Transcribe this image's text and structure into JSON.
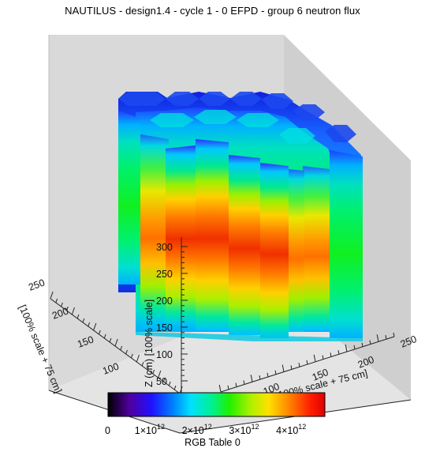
{
  "chart_data": {
    "type": "3d-volume",
    "title": "NAUTILUS - design1.4 - cycle 1 - 0 EFPD - group 6 neutron flux",
    "axes": {
      "x": {
        "label": "100% scale + 75 cm]",
        "ticks": [
          "100",
          "150",
          "200",
          "250"
        ]
      },
      "y": {
        "label": "[100% scale + 75 cm]",
        "ticks": [
          "250",
          "200",
          "150",
          "100"
        ]
      },
      "z": {
        "label": "Z (cm) [100% scale]",
        "ticks": [
          "300",
          "250",
          "200",
          "150",
          "100",
          "50"
        ]
      }
    },
    "colorbar": {
      "title": "RGB Table 0",
      "range": [
        0,
        4600000000000.0
      ],
      "ticks": [
        {
          "value": 0,
          "label": "0",
          "html": "0"
        },
        {
          "value": 1000000000000.0,
          "label": "1×10^12",
          "html": "1×10<sup>12</sup>"
        },
        {
          "value": 2000000000000.0,
          "label": "2×10^12",
          "html": "2×10<sup>12</sup>"
        },
        {
          "value": 3000000000000.0,
          "label": "3×10^12",
          "html": "3×10<sup>12</sup>"
        },
        {
          "value": 4000000000000.0,
          "label": "4×10^12",
          "html": "4×10<sup>12</sup>"
        }
      ]
    }
  }
}
